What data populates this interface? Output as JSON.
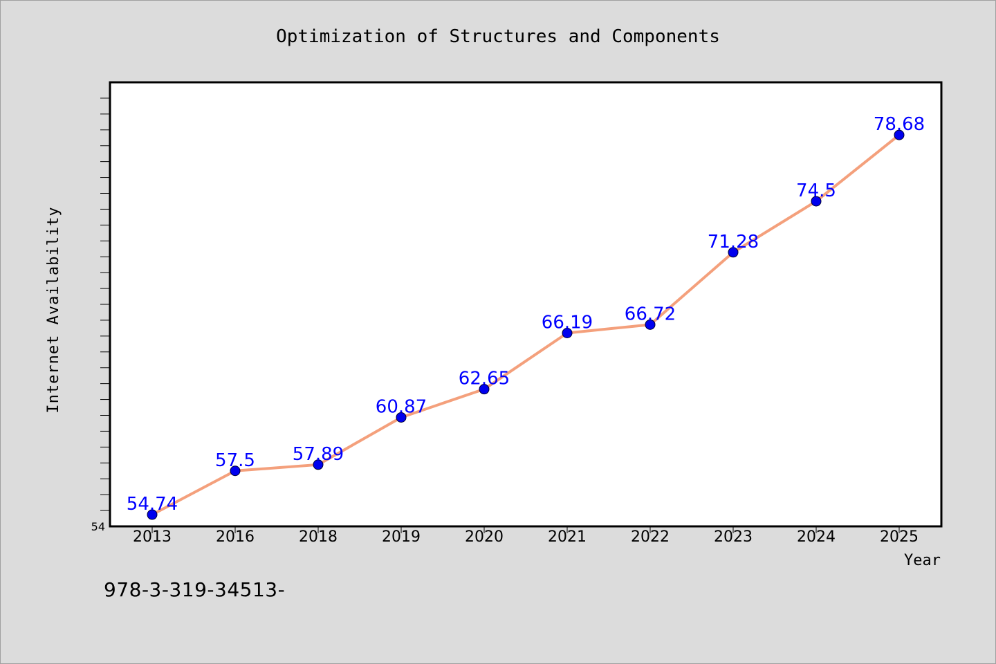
{
  "chart_data": {
    "type": "line",
    "title": "Optimization of Structures and Components",
    "xlabel": "Year",
    "ylabel": "Internet Availability",
    "categories": [
      "2013",
      "2016",
      "2018",
      "2019",
      "2020",
      "2021",
      "2022",
      "2023",
      "2024",
      "2025"
    ],
    "series": [
      {
        "values": [
          54.74,
          57.5,
          57.89,
          60.87,
          62.65,
          66.19,
          66.72,
          71.28,
          74.5,
          78.68
        ]
      }
    ],
    "data_labels": [
      "54.74",
      "57.5",
      "57.89",
      "60.87",
      "62.65",
      "66.19",
      "66.72",
      "71.28",
      "74.5",
      "78.68"
    ],
    "ylim": [
      54,
      82
    ],
    "y_tick_labels": [
      "54"
    ],
    "grid": false,
    "colors": {
      "line": "#f4a07c",
      "marker": "#0000ee",
      "data_label": "#0000ff",
      "background": "#dcdcdc",
      "plot_background": "#ffffff"
    }
  },
  "footer": {
    "code": "978-3-319-34513-"
  }
}
